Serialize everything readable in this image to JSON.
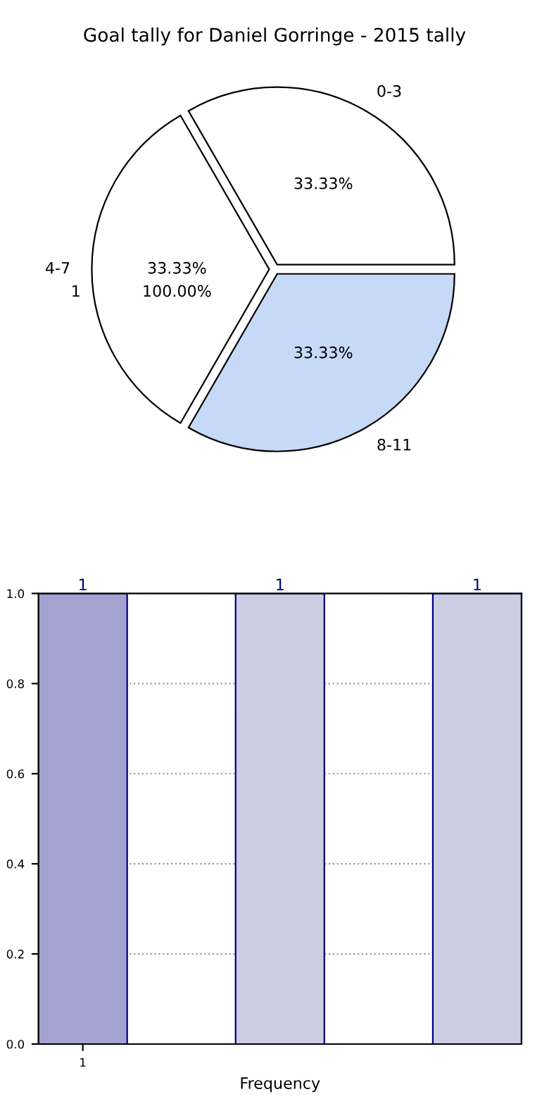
{
  "chart_data": [
    {
      "type": "pie",
      "title": "Goal tally for Daniel Gorringe - 2015 tally",
      "categories": [
        "0-3",
        "4-7",
        "8-11"
      ],
      "values": [
        33.33,
        33.33,
        33.33
      ],
      "colors": [
        "#ffffff",
        "#ffffff",
        "#c6d9f7"
      ],
      "value_labels": [
        "33.33%",
        "33.33%",
        "33.33%"
      ],
      "annotations": [
        "1",
        "100.00%"
      ]
    },
    {
      "type": "bar",
      "categories": [
        "1",
        null,
        null
      ],
      "values": [
        1,
        1,
        1
      ],
      "colors": [
        "#a3a3d0",
        "#cccce3",
        "#cccce3"
      ],
      "xlabel": "Frequency",
      "ylim": [
        0,
        1.0
      ],
      "yticks": [
        {
          "value": 0,
          "label": "0.0"
        },
        {
          "value": 0.2,
          "label": "0.2"
        },
        {
          "value": 0.4,
          "label": "0.4"
        },
        {
          "value": 0.6,
          "label": "0.6"
        },
        {
          "value": 0.8,
          "label": "0.8"
        },
        {
          "value": 1.0,
          "label": "1.0"
        }
      ],
      "grid": true,
      "data_labels": true
    }
  ]
}
